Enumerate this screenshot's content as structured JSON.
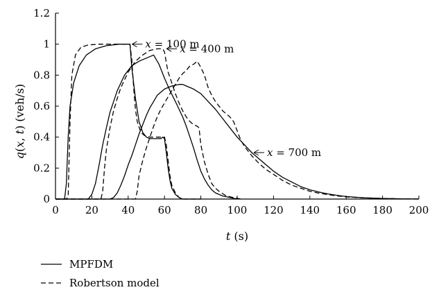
{
  "chart_data": {
    "type": "line",
    "xlabel": "t (s)",
    "ylabel": "q(x, t) (veh/s)",
    "xlim": [
      0,
      200
    ],
    "ylim": [
      0,
      1.2
    ],
    "x_ticks": [
      "0",
      "20",
      "40",
      "60",
      "80",
      "100",
      "120",
      "140",
      "160",
      "180",
      "200"
    ],
    "y_ticks": [
      "0",
      "0.2",
      "0.4",
      "0.6",
      "0.8",
      "1",
      "1.2"
    ],
    "grid": false,
    "legend_position": "bottom-left",
    "series": [
      {
        "name": "MPFDM",
        "style": "solid",
        "group": "x = 100 m",
        "points": [
          [
            0,
            0
          ],
          [
            5,
            0
          ],
          [
            6,
            0.1
          ],
          [
            7,
            0.4
          ],
          [
            8,
            0.6
          ],
          [
            10,
            0.75
          ],
          [
            13,
            0.86
          ],
          [
            17,
            0.93
          ],
          [
            22,
            0.97
          ],
          [
            28,
            0.99
          ],
          [
            35,
            1.0
          ],
          [
            41,
            1.0
          ],
          [
            42,
            0.85
          ],
          [
            44,
            0.65
          ],
          [
            46,
            0.5
          ],
          [
            48,
            0.43
          ],
          [
            50,
            0.4
          ],
          [
            52,
            0.39
          ],
          [
            55,
            0.39
          ],
          [
            58,
            0.39
          ],
          [
            59,
            0.4
          ],
          [
            60,
            0.39
          ],
          [
            61,
            0.3
          ],
          [
            62,
            0.2
          ],
          [
            63,
            0.12
          ],
          [
            64,
            0.07
          ],
          [
            66,
            0.03
          ],
          [
            68,
            0.01
          ],
          [
            70,
            0
          ],
          [
            75,
            0
          ],
          [
            80,
            0
          ]
        ]
      },
      {
        "name": "Robertson model",
        "style": "dashed",
        "group": "x = 100 m",
        "points": [
          [
            0,
            0
          ],
          [
            6,
            0
          ],
          [
            7,
            0.02
          ],
          [
            8,
            0.5
          ],
          [
            9,
            0.8
          ],
          [
            11,
            0.93
          ],
          [
            14,
            0.98
          ],
          [
            18,
            0.995
          ],
          [
            24,
            1.0
          ],
          [
            40,
            1.0
          ],
          [
            41,
            1.0
          ],
          [
            42,
            0.9
          ],
          [
            43,
            0.72
          ],
          [
            44,
            0.58
          ],
          [
            45,
            0.5
          ],
          [
            47,
            0.43
          ],
          [
            49,
            0.41
          ],
          [
            52,
            0.4
          ],
          [
            60,
            0.4
          ],
          [
            61,
            0.35
          ],
          [
            62,
            0.25
          ],
          [
            63,
            0.15
          ],
          [
            64,
            0.09
          ],
          [
            66,
            0.04
          ],
          [
            68,
            0.01
          ],
          [
            70,
            0
          ],
          [
            80,
            0
          ]
        ]
      },
      {
        "name": "MPFDM",
        "style": "solid",
        "group": "x = 400 m",
        "points": [
          [
            0,
            0
          ],
          [
            18,
            0
          ],
          [
            20,
            0.03
          ],
          [
            22,
            0.1
          ],
          [
            24,
            0.22
          ],
          [
            26,
            0.35
          ],
          [
            28,
            0.46
          ],
          [
            30,
            0.56
          ],
          [
            34,
            0.7
          ],
          [
            38,
            0.8
          ],
          [
            42,
            0.86
          ],
          [
            46,
            0.89
          ],
          [
            50,
            0.91
          ],
          [
            54,
            0.93
          ],
          [
            57,
            0.87
          ],
          [
            60,
            0.78
          ],
          [
            63,
            0.7
          ],
          [
            66,
            0.63
          ],
          [
            68,
            0.58
          ],
          [
            70,
            0.53
          ],
          [
            72,
            0.47
          ],
          [
            74,
            0.4
          ],
          [
            76,
            0.33
          ],
          [
            78,
            0.25
          ],
          [
            80,
            0.18
          ],
          [
            82,
            0.13
          ],
          [
            84,
            0.09
          ],
          [
            86,
            0.06
          ],
          [
            88,
            0.04
          ],
          [
            92,
            0.02
          ],
          [
            96,
            0.01
          ],
          [
            100,
            0
          ]
        ]
      },
      {
        "name": "Robertson model",
        "style": "dashed",
        "group": "x = 400 m",
        "points": [
          [
            0,
            0
          ],
          [
            25,
            0
          ],
          [
            26,
            0.05
          ],
          [
            27,
            0.2
          ],
          [
            28,
            0.32
          ],
          [
            30,
            0.46
          ],
          [
            32,
            0.57
          ],
          [
            34,
            0.65
          ],
          [
            36,
            0.72
          ],
          [
            38,
            0.77
          ],
          [
            40,
            0.82
          ],
          [
            44,
            0.89
          ],
          [
            48,
            0.93
          ],
          [
            52,
            0.96
          ],
          [
            56,
            0.97
          ],
          [
            59,
            0.97
          ],
          [
            60,
            0.95
          ],
          [
            61,
            0.88
          ],
          [
            62,
            0.82
          ],
          [
            64,
            0.75
          ],
          [
            66,
            0.68
          ],
          [
            68,
            0.62
          ],
          [
            70,
            0.57
          ],
          [
            72,
            0.53
          ],
          [
            74,
            0.5
          ],
          [
            76,
            0.48
          ],
          [
            78,
            0.47
          ],
          [
            79,
            0.46
          ],
          [
            80,
            0.35
          ],
          [
            82,
            0.24
          ],
          [
            84,
            0.16
          ],
          [
            86,
            0.1
          ],
          [
            88,
            0.07
          ],
          [
            90,
            0.05
          ],
          [
            94,
            0.02
          ],
          [
            98,
            0.01
          ],
          [
            102,
            0
          ]
        ]
      },
      {
        "name": "MPFDM",
        "style": "solid",
        "group": "x = 700 m",
        "points": [
          [
            0,
            0
          ],
          [
            30,
            0
          ],
          [
            32,
            0.01
          ],
          [
            34,
            0.04
          ],
          [
            36,
            0.09
          ],
          [
            38,
            0.15
          ],
          [
            40,
            0.22
          ],
          [
            42,
            0.28
          ],
          [
            44,
            0.35
          ],
          [
            46,
            0.42
          ],
          [
            48,
            0.48
          ],
          [
            50,
            0.54
          ],
          [
            52,
            0.59
          ],
          [
            54,
            0.63
          ],
          [
            56,
            0.67
          ],
          [
            60,
            0.71
          ],
          [
            64,
            0.73
          ],
          [
            68,
            0.74
          ],
          [
            70,
            0.74
          ],
          [
            72,
            0.73
          ],
          [
            76,
            0.71
          ],
          [
            80,
            0.68
          ],
          [
            84,
            0.63
          ],
          [
            88,
            0.58
          ],
          [
            92,
            0.52
          ],
          [
            96,
            0.46
          ],
          [
            100,
            0.4
          ],
          [
            104,
            0.35
          ],
          [
            108,
            0.3
          ],
          [
            112,
            0.26
          ],
          [
            116,
            0.22
          ],
          [
            120,
            0.18
          ],
          [
            125,
            0.14
          ],
          [
            130,
            0.11
          ],
          [
            135,
            0.08
          ],
          [
            140,
            0.06
          ],
          [
            145,
            0.045
          ],
          [
            150,
            0.033
          ],
          [
            155,
            0.024
          ],
          [
            160,
            0.016
          ],
          [
            170,
            0.008
          ],
          [
            180,
            0.004
          ],
          [
            190,
            0.002
          ],
          [
            200,
            0
          ]
        ]
      },
      {
        "name": "Robertson model",
        "style": "dashed",
        "group": "x = 700 m",
        "points": [
          [
            0,
            0
          ],
          [
            44,
            0
          ],
          [
            45,
            0.05
          ],
          [
            46,
            0.15
          ],
          [
            48,
            0.25
          ],
          [
            50,
            0.33
          ],
          [
            52,
            0.4
          ],
          [
            54,
            0.47
          ],
          [
            56,
            0.53
          ],
          [
            58,
            0.58
          ],
          [
            60,
            0.62
          ],
          [
            62,
            0.66
          ],
          [
            64,
            0.7
          ],
          [
            66,
            0.74
          ],
          [
            68,
            0.78
          ],
          [
            70,
            0.81
          ],
          [
            72,
            0.83
          ],
          [
            74,
            0.86
          ],
          [
            76,
            0.87
          ],
          [
            78,
            0.89
          ],
          [
            80,
            0.85
          ],
          [
            82,
            0.8
          ],
          [
            84,
            0.72
          ],
          [
            86,
            0.67
          ],
          [
            88,
            0.63
          ],
          [
            90,
            0.6
          ],
          [
            92,
            0.57
          ],
          [
            94,
            0.55
          ],
          [
            96,
            0.53
          ],
          [
            98,
            0.5
          ],
          [
            100,
            0.44
          ],
          [
            102,
            0.38
          ],
          [
            104,
            0.34
          ],
          [
            108,
            0.28
          ],
          [
            112,
            0.23
          ],
          [
            116,
            0.19
          ],
          [
            120,
            0.16
          ],
          [
            125,
            0.12
          ],
          [
            130,
            0.09
          ],
          [
            135,
            0.07
          ],
          [
            140,
            0.05
          ],
          [
            145,
            0.038
          ],
          [
            150,
            0.028
          ],
          [
            155,
            0.02
          ],
          [
            160,
            0.014
          ],
          [
            170,
            0.007
          ],
          [
            180,
            0.004
          ],
          [
            190,
            0.002
          ],
          [
            200,
            0.001
          ]
        ]
      }
    ],
    "annotations": [
      {
        "text_var": "x",
        "text_rest": " = 100 m",
        "at": [
          41,
          1.0
        ]
      },
      {
        "text_var": "x",
        "text_rest": " = 400 m",
        "at": [
          60,
          0.97
        ]
      },
      {
        "text_var": "x",
        "text_rest": " = 700 m",
        "at": [
          108,
          0.3
        ]
      }
    ],
    "legend": [
      {
        "label": "MPFDM",
        "style": "solid"
      },
      {
        "label": "Robertson model",
        "style": "dashed"
      }
    ]
  }
}
